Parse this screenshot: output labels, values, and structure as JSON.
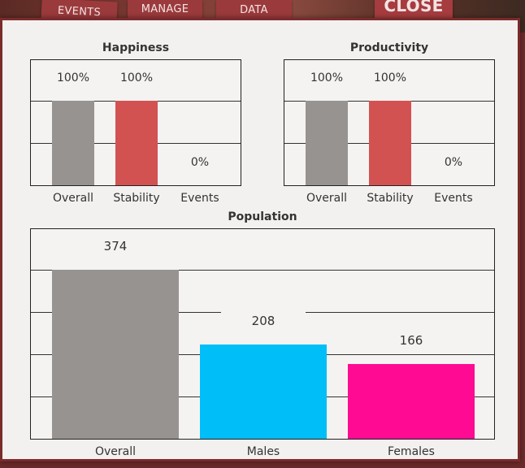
{
  "tabs": {
    "events": "EVENTS",
    "manage": "MANAGE",
    "data": "DATA",
    "close": "CLOSE"
  },
  "colors": {
    "overall": "#979391",
    "stability": "#d25252",
    "males": "#00bef7",
    "females": "#ff0b93",
    "panel": "#f3f1ef",
    "frame": "#7b2b2b"
  },
  "chart_data": [
    {
      "type": "bar",
      "title": "Happiness",
      "categories": [
        "Overall",
        "Stability",
        "Events"
      ],
      "values": [
        100,
        100,
        0
      ],
      "value_labels": [
        "100%",
        "100%",
        "0%"
      ],
      "ylim": [
        0,
        100
      ],
      "grid": true
    },
    {
      "type": "bar",
      "title": "Productivity",
      "categories": [
        "Overall",
        "Stability",
        "Events"
      ],
      "values": [
        100,
        100,
        0
      ],
      "value_labels": [
        "100%",
        "100%",
        "0%"
      ],
      "ylim": [
        0,
        100
      ],
      "grid": true
    },
    {
      "type": "bar",
      "title": "Population",
      "categories": [
        "Overall",
        "Males",
        "Females"
      ],
      "values": [
        374,
        208,
        166
      ],
      "value_labels": [
        "374",
        "208",
        "166"
      ],
      "ylim": [
        0,
        374
      ],
      "grid": true
    }
  ]
}
